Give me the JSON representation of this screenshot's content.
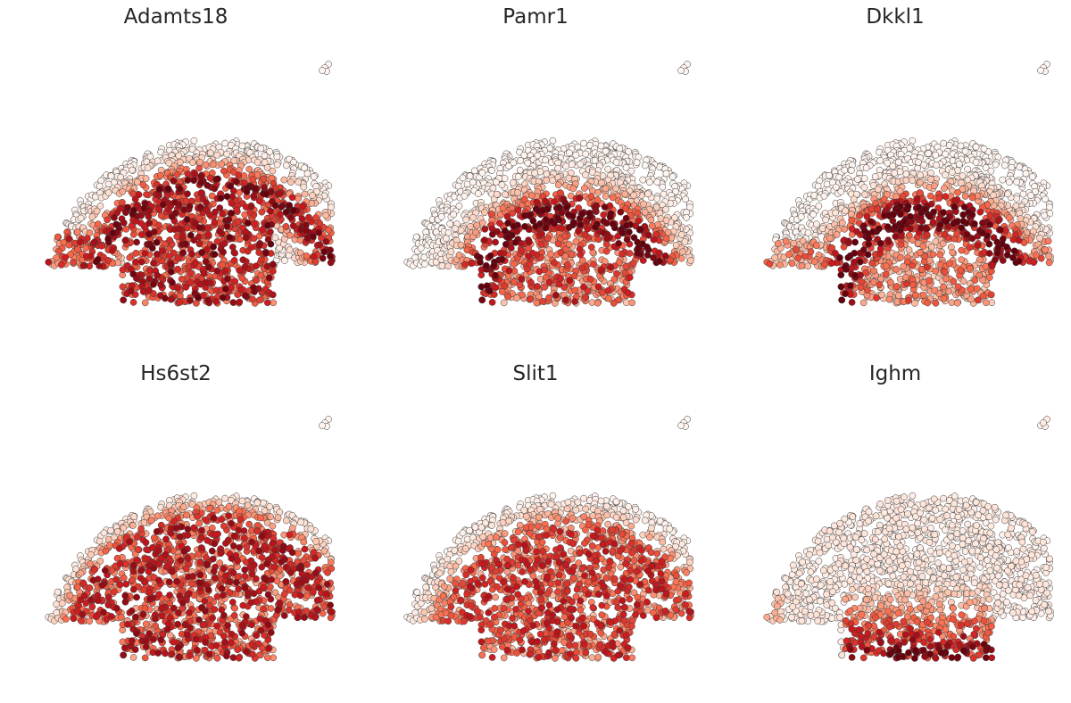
{
  "chart_data": {
    "type": "scatter",
    "description_layout": "2x3 grid of spatial scatter plots",
    "color_scale": [
      "#fff5f0",
      "#fcbba1",
      "#fb6a4a",
      "#cb181d",
      "#67000d"
    ],
    "marker_edge_color": "#3a3a3a",
    "axes_visible": false,
    "grid": false,
    "legend": "none",
    "panels": [
      {
        "title": "Adamts18",
        "pattern": "outer_band"
      },
      {
        "title": "Pamr1",
        "pattern": "middle_band"
      },
      {
        "title": "Dkkl1",
        "pattern": "middle_band_strong"
      },
      {
        "title": "Hs6st2",
        "pattern": "broad_interior"
      },
      {
        "title": "Slit1",
        "pattern": "broad_interior_soft"
      },
      {
        "title": "Ighm",
        "pattern": "bottom_patch"
      }
    ]
  }
}
